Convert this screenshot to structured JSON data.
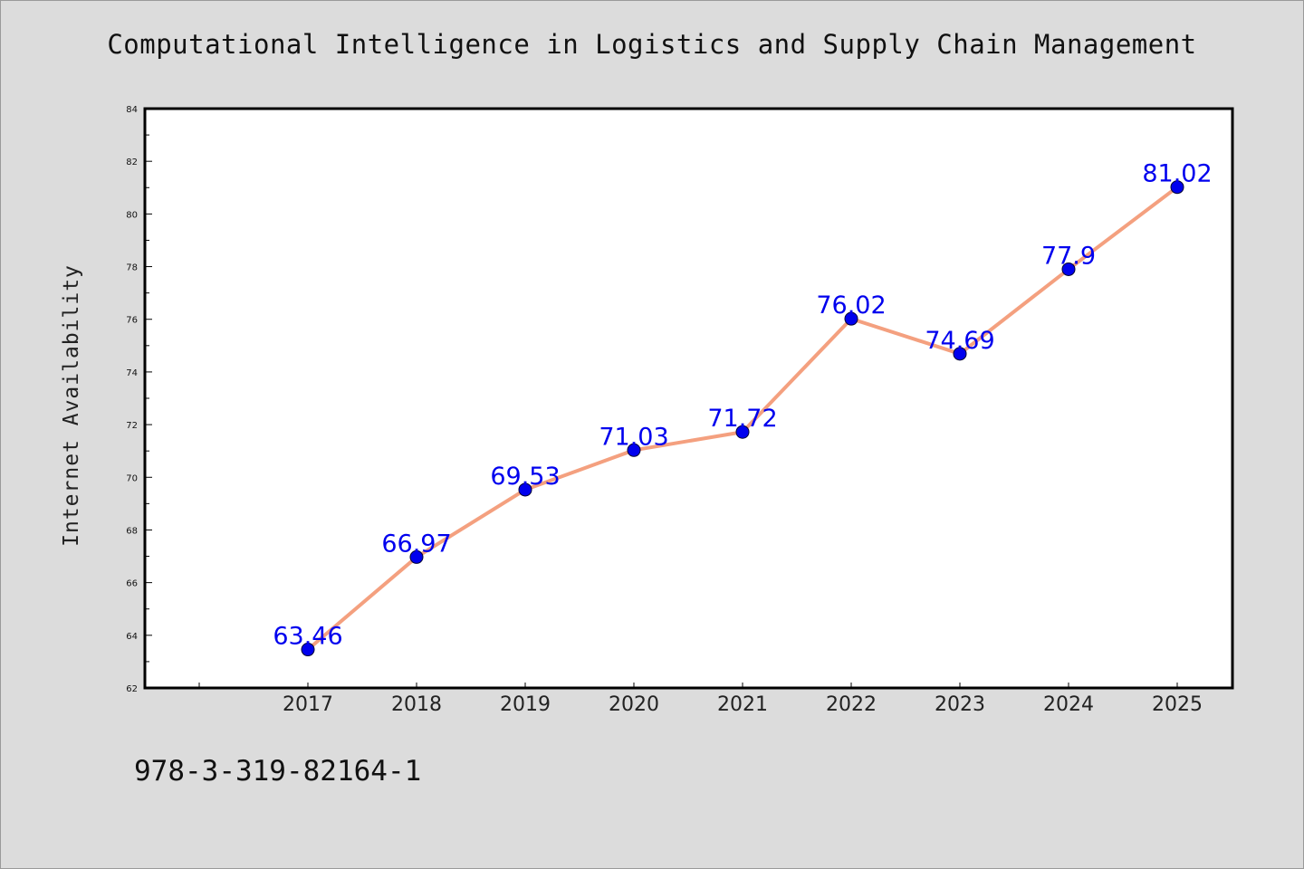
{
  "chart_data": {
    "type": "line",
    "title": "Computational Intelligence in Logistics and Supply Chain Management",
    "xlabel": "",
    "ylabel": "Internet Availability",
    "categories": [
      "2017",
      "2018",
      "2019",
      "2020",
      "2021",
      "2022",
      "2023",
      "2024",
      "2025"
    ],
    "series": [
      {
        "values": [
          63.46,
          66.97,
          69.53,
          71.03,
          71.72,
          76.02,
          74.69,
          77.9,
          81.02
        ],
        "labels": [
          "63.46",
          "66.97",
          "69.53",
          "71.03",
          "71.72",
          "76.02",
          "74.69",
          "77.9",
          "81.02"
        ],
        "line_color": "#f4a07f",
        "marker_color": "#0000ee",
        "label_color": "#0000ee"
      }
    ],
    "ylim": [
      62,
      84
    ],
    "ymajor_ticks": [
      "62",
      "64",
      "66",
      "68",
      "70",
      "72",
      "74",
      "76",
      "78",
      "80",
      "82",
      "84"
    ],
    "grid": false,
    "legend": "none",
    "background": "#ffffff",
    "page_background": "#dcdcdc"
  },
  "footer": {
    "code": "978-3-319-82164-1"
  }
}
